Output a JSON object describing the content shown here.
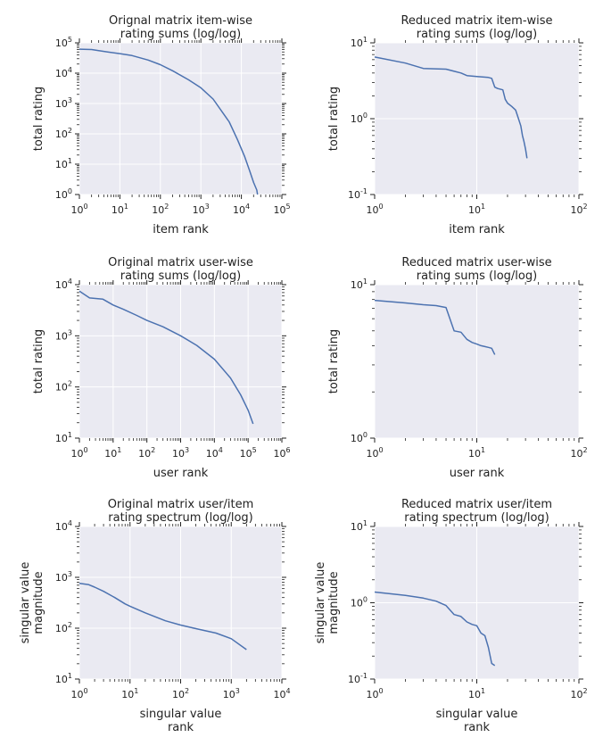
{
  "chart_data": [
    {
      "type": "line",
      "title": [
        "Orignal matrix item-wise",
        "rating sums (log/log)"
      ],
      "xlabel": [
        "item rank"
      ],
      "ylabel": [
        "total rating"
      ],
      "xscale": "log",
      "yscale": "log",
      "xlim": [
        1,
        100000
      ],
      "ylim": [
        1,
        100000
      ],
      "grid": true,
      "series": [
        {
          "x": [
            1,
            2,
            3,
            5,
            10,
            20,
            50,
            100,
            200,
            500,
            1000,
            2000,
            5000,
            8000,
            12000,
            16000,
            20000,
            24000,
            25000
          ],
          "y": [
            62000,
            60000,
            55000,
            50000,
            44000,
            38000,
            27000,
            19000,
            12000,
            6000,
            3300,
            1400,
            250,
            65,
            18,
            6,
            2.5,
            1.4,
            1.0
          ]
        }
      ]
    },
    {
      "type": "line",
      "title": [
        "Reduced matrix item-wise",
        "rating sums (log/log)"
      ],
      "xlabel": [
        "item rank"
      ],
      "ylabel": [
        "total rating"
      ],
      "xscale": "log",
      "yscale": "log",
      "xlim": [
        1,
        100
      ],
      "ylim": [
        0.1,
        10
      ],
      "grid": true,
      "series": [
        {
          "x": [
            1,
            2,
            3,
            5,
            7,
            8,
            10,
            13,
            14,
            15,
            16,
            18,
            19,
            20,
            22,
            24,
            25,
            27,
            28,
            29,
            30,
            31
          ],
          "y": [
            6.5,
            5.4,
            4.6,
            4.5,
            4.0,
            3.7,
            3.6,
            3.5,
            3.4,
            2.6,
            2.5,
            2.4,
            1.8,
            1.6,
            1.45,
            1.3,
            1.1,
            0.8,
            0.6,
            0.5,
            0.4,
            0.3
          ]
        }
      ]
    },
    {
      "type": "line",
      "title": [
        "Original matrix user-wise",
        "rating sums (log/log)"
      ],
      "xlabel": [
        "user rank"
      ],
      "ylabel": [
        "total rating"
      ],
      "xscale": "log",
      "yscale": "log",
      "xlim": [
        1,
        1000000
      ],
      "ylim": [
        10,
        10000
      ],
      "grid": true,
      "series": [
        {
          "x": [
            1,
            2,
            5,
            10,
            20,
            50,
            100,
            300,
            1000,
            3000,
            10000,
            30000,
            60000,
            100000,
            140000
          ],
          "y": [
            7500,
            5500,
            5200,
            4000,
            3300,
            2500,
            2000,
            1500,
            1000,
            650,
            350,
            150,
            70,
            35,
            19
          ]
        }
      ]
    },
    {
      "type": "line",
      "title": [
        "Reduced matrix user-wise",
        "rating sums (log/log)"
      ],
      "xlabel": [
        "user rank"
      ],
      "ylabel": [
        "total rating"
      ],
      "xscale": "log",
      "yscale": "log",
      "xlim": [
        1,
        100
      ],
      "ylim": [
        1,
        10
      ],
      "grid": true,
      "series": [
        {
          "x": [
            1,
            2,
            3,
            4,
            5,
            6,
            7,
            8,
            9,
            10,
            11,
            12,
            13,
            14,
            15
          ],
          "y": [
            7.9,
            7.6,
            7.4,
            7.3,
            7.1,
            5.0,
            4.9,
            4.4,
            4.2,
            4.1,
            4.0,
            3.95,
            3.9,
            3.85,
            3.5
          ]
        }
      ]
    },
    {
      "type": "line",
      "title": [
        "Original matrix user/item",
        "rating spectrum (log/log)"
      ],
      "xlabel": [
        "singular value",
        "rank"
      ],
      "ylabel": [
        "singular value",
        "magnitude"
      ],
      "xscale": "log",
      "yscale": "log",
      "xlim": [
        1,
        10000
      ],
      "ylim": [
        10,
        10000
      ],
      "grid": true,
      "series": [
        {
          "x": [
            1,
            1.5,
            2,
            3,
            5,
            8,
            10,
            20,
            50,
            100,
            200,
            500,
            1000,
            2000
          ],
          "y": [
            760,
            720,
            640,
            530,
            400,
            300,
            270,
            200,
            140,
            115,
            98,
            80,
            62,
            38
          ]
        }
      ]
    },
    {
      "type": "line",
      "title": [
        "Reduced matrix user/item",
        "rating spectrum (log/log)"
      ],
      "xlabel": [
        "singular value",
        "rank"
      ],
      "ylabel": [
        "singular value",
        "magnitude"
      ],
      "xscale": "log",
      "yscale": "log",
      "xlim": [
        1,
        100
      ],
      "ylim": [
        0.1,
        10
      ],
      "grid": true,
      "series": [
        {
          "x": [
            1,
            2,
            3,
            4,
            5,
            6,
            7,
            8,
            9,
            10,
            11,
            12,
            13,
            14,
            15
          ],
          "y": [
            1.38,
            1.25,
            1.15,
            1.05,
            0.92,
            0.7,
            0.66,
            0.56,
            0.52,
            0.5,
            0.4,
            0.37,
            0.26,
            0.16,
            0.15
          ]
        }
      ]
    }
  ],
  "style": {
    "axes_bg": "#eaeaf2",
    "grid_color": "#ffffff",
    "line_color": "#4c72b0",
    "tick_color": "#222222",
    "text_color": "#222222"
  }
}
